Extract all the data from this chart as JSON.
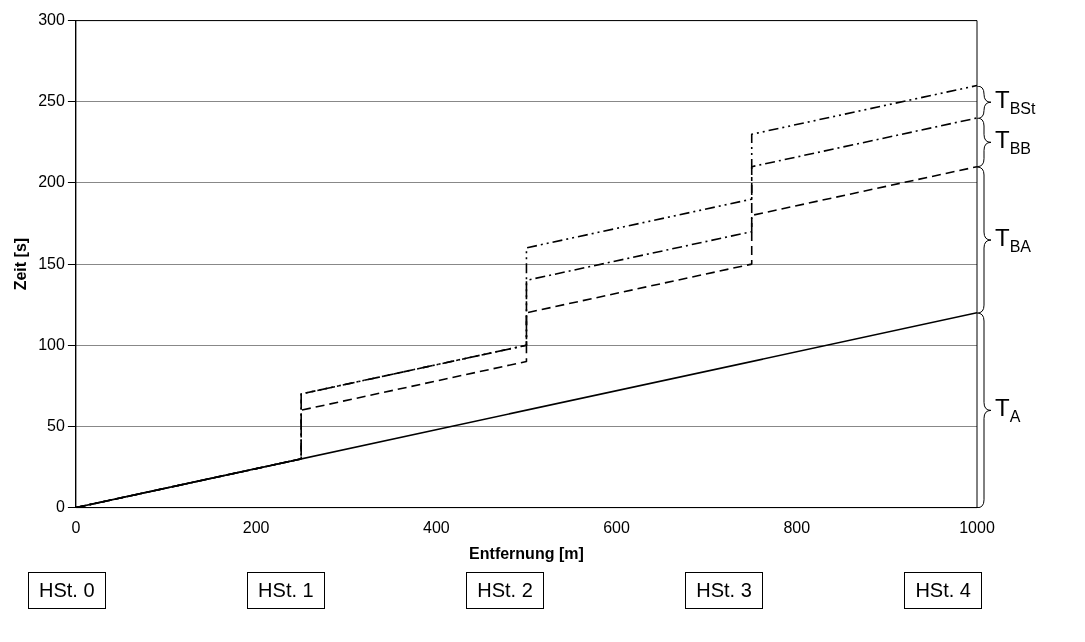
{
  "chart_data": {
    "type": "line",
    "xlabel": "Entfernung [m]",
    "ylabel": "Zeit [s]",
    "xlim": [
      0,
      1000
    ],
    "xticks": [
      0,
      200,
      400,
      600,
      800,
      1000
    ],
    "ylim": [
      0,
      300
    ],
    "yticks": [
      0,
      50,
      100,
      150,
      200,
      250,
      300
    ],
    "grid": "y",
    "legend": false,
    "marker": "none",
    "series": [
      {
        "color": "#000000",
        "line_style": "solid",
        "x": [
          0,
          1000
        ],
        "values": [
          0,
          120
        ]
      },
      {
        "color": "#000000",
        "line_style": "dashed",
        "x": [
          0,
          250,
          250,
          500,
          500,
          750,
          750,
          1000
        ],
        "values": [
          0,
          30,
          60,
          90,
          120,
          150,
          180,
          210
        ]
      },
      {
        "color": "#000000",
        "line_style": "dashdot",
        "x": [
          0,
          250,
          250,
          500,
          500,
          750,
          750,
          1000
        ],
        "values": [
          0,
          30,
          70,
          100,
          140,
          170,
          210,
          240
        ]
      },
      {
        "color": "#000000",
        "line_style": "dashdotdot",
        "x": [
          0,
          250,
          250,
          500,
          500,
          750,
          750,
          1000
        ],
        "values": [
          0,
          30,
          70,
          100,
          160,
          190,
          230,
          260
        ]
      }
    ],
    "annotations": [
      "T$_{A}$",
      "T$_{BA}$",
      "T$_{BB}$",
      "T$_{BSt}$",
      "HSt. 0",
      "HSt. 1",
      "HSt. 2",
      "HSt. 3",
      "HSt. 4"
    ]
  }
}
